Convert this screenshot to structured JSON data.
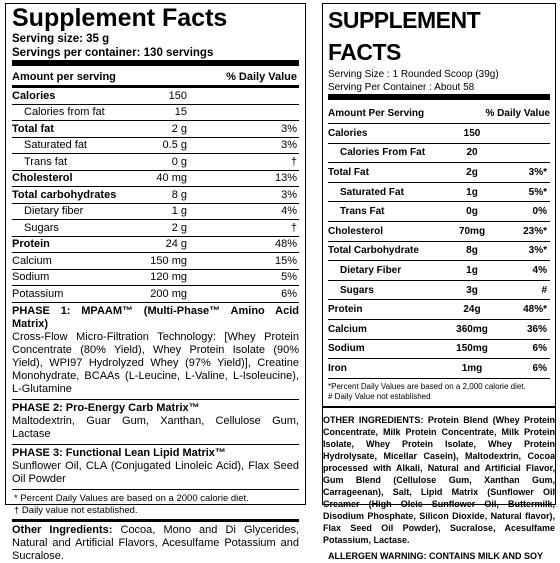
{
  "left": {
    "title": "Supplement Facts",
    "serving_size": "Serving size: 35 g",
    "servings_per_container": "Servings per container: 130 servings",
    "header": {
      "amount": "Amount per serving",
      "dv": "% Daily Value"
    },
    "nutrients": [
      {
        "name": "Calories",
        "amount": "150"
      },
      {
        "name": "Calories from fat",
        "amount": "15"
      },
      {
        "name": "Total fat",
        "amount": "2 g",
        "dv": "3%"
      },
      {
        "name": "Saturated fat",
        "amount": "0.5 g",
        "dv": "3%"
      },
      {
        "name": "Trans fat",
        "amount": "0 g",
        "dv": "†"
      },
      {
        "name": "Cholesterol",
        "amount": "40 mg",
        "dv": "13%"
      },
      {
        "name": "Total carbohydrates",
        "amount": "8 g",
        "dv": "3%"
      },
      {
        "name": "Dietary fiber",
        "amount": "1 g",
        "dv": "4%"
      },
      {
        "name": "Sugars",
        "amount": "2 g",
        "dv": "†"
      },
      {
        "name": "Protein",
        "amount": "24 g",
        "dv": "48%"
      },
      {
        "name": "Calcium",
        "amount": "150 mg",
        "dv": "15%"
      },
      {
        "name": "Sodium",
        "amount": "120 mg",
        "dv": "5%"
      },
      {
        "name": "Potassium",
        "amount": "200 mg",
        "dv": "6%"
      }
    ],
    "phases": [
      {
        "title": "PHASE 1: MPAAM™ (Multi-Phase™ Amino Acid Matrix)",
        "text": "Cross-Flow Micro-Filtration Technology: [Whey Protein Concentrate (80% Yield), Whey Protein Isolate (90% Yield), WPI97 Hydrolyzed Whey (97% Yield)], Creatine Monohydrate, BCAAs (L-Leucine, L-Valine, L-Isoleucine), L-Glutamine"
      },
      {
        "title": "PHASE 2: Pro-Energy Carb Matrix™",
        "text": "Maltodextrin, Guar Gum, Xanthan, Cellulose Gum, Lactase"
      },
      {
        "title": "PHASE 3: Functional Lean Lipid Matrix™",
        "text": "Sunflower Oil, CLA (Conjugated Linoleic Acid), Flax Seed Oil Powder"
      }
    ],
    "footnotes": [
      "* Percent Daily Values are based on a 2000 calorie diet.",
      "† Daily value not established."
    ],
    "other_ingredients": {
      "label": "Other Ingredients:",
      "text": "Cocoa, Mono and Di Glycerides, Natural and Artificial Flavors, Acesulfame Potassium and Sucralose."
    }
  },
  "right": {
    "title": "SUPPLEMENT FACTS",
    "serving_size": "Serving Size : 1 Rounded Scoop (39g)",
    "servings_per_container": "Serving Per Container : About 58",
    "header": {
      "amount": "Amount Per Serving",
      "dv": "% Daily Value"
    },
    "nutrients": [
      {
        "name": "Calories",
        "amount": "150"
      },
      {
        "name": "Calories From Fat",
        "amount": "20"
      },
      {
        "name": "Total Fat",
        "amount": "2g",
        "dv": "3%*"
      },
      {
        "name": "Saturated Fat",
        "amount": "1g",
        "dv": "5%*"
      },
      {
        "name": "Trans Fat",
        "amount": "0g",
        "dv": "0%"
      },
      {
        "name": "Cholesterol",
        "amount": "70mg",
        "dv": "23%*"
      },
      {
        "name": "Total Carbohydrate",
        "amount": "8g",
        "dv": "3%*"
      },
      {
        "name": "Dietary Fiber",
        "amount": "1g",
        "dv": "4%"
      },
      {
        "name": "Sugars",
        "amount": "3g",
        "dv": "#"
      },
      {
        "name": "Protein",
        "amount": "24g",
        "dv": "48%*"
      },
      {
        "name": "Calcium",
        "amount": "360mg",
        "dv": "36%"
      },
      {
        "name": "Sodium",
        "amount": "150mg",
        "dv": "6%"
      },
      {
        "name": "Iron",
        "amount": "1mg",
        "dv": "6%"
      }
    ],
    "footnotes": [
      "*Percent Daily Values are based on a 2,000 calorie diet.",
      "# Daily Value not established"
    ],
    "other_ingredients": {
      "label": "OTHER INGREDIENTS:",
      "text": "Protein Blend (Whey Protein Concentrate, Milk Protein Concentrate, Milk Protein Isolate, Whey Protein Isolate, Whey Protein Hydrolysate, Micellar Casein), Maltodextrin, Cocoa processed with Alkali, Natural and Artificial Flavor, Gum Blend (Cellulose Gum, Xanthan Gum, Carrageenan), Salt, Lipid Matrix (Sunflower Oil Creamer (High Oleic Sunflower Oil, Buttermilk, Disodium Phosphate, Silicon Dioxide, Natural flavor), Flax Seed Oil Powder), Sucralose, Acesulfame Potassium, Lactase."
    },
    "allergen": "ALLERGEN WARNING: CONTAINS MILK AND SOY"
  }
}
